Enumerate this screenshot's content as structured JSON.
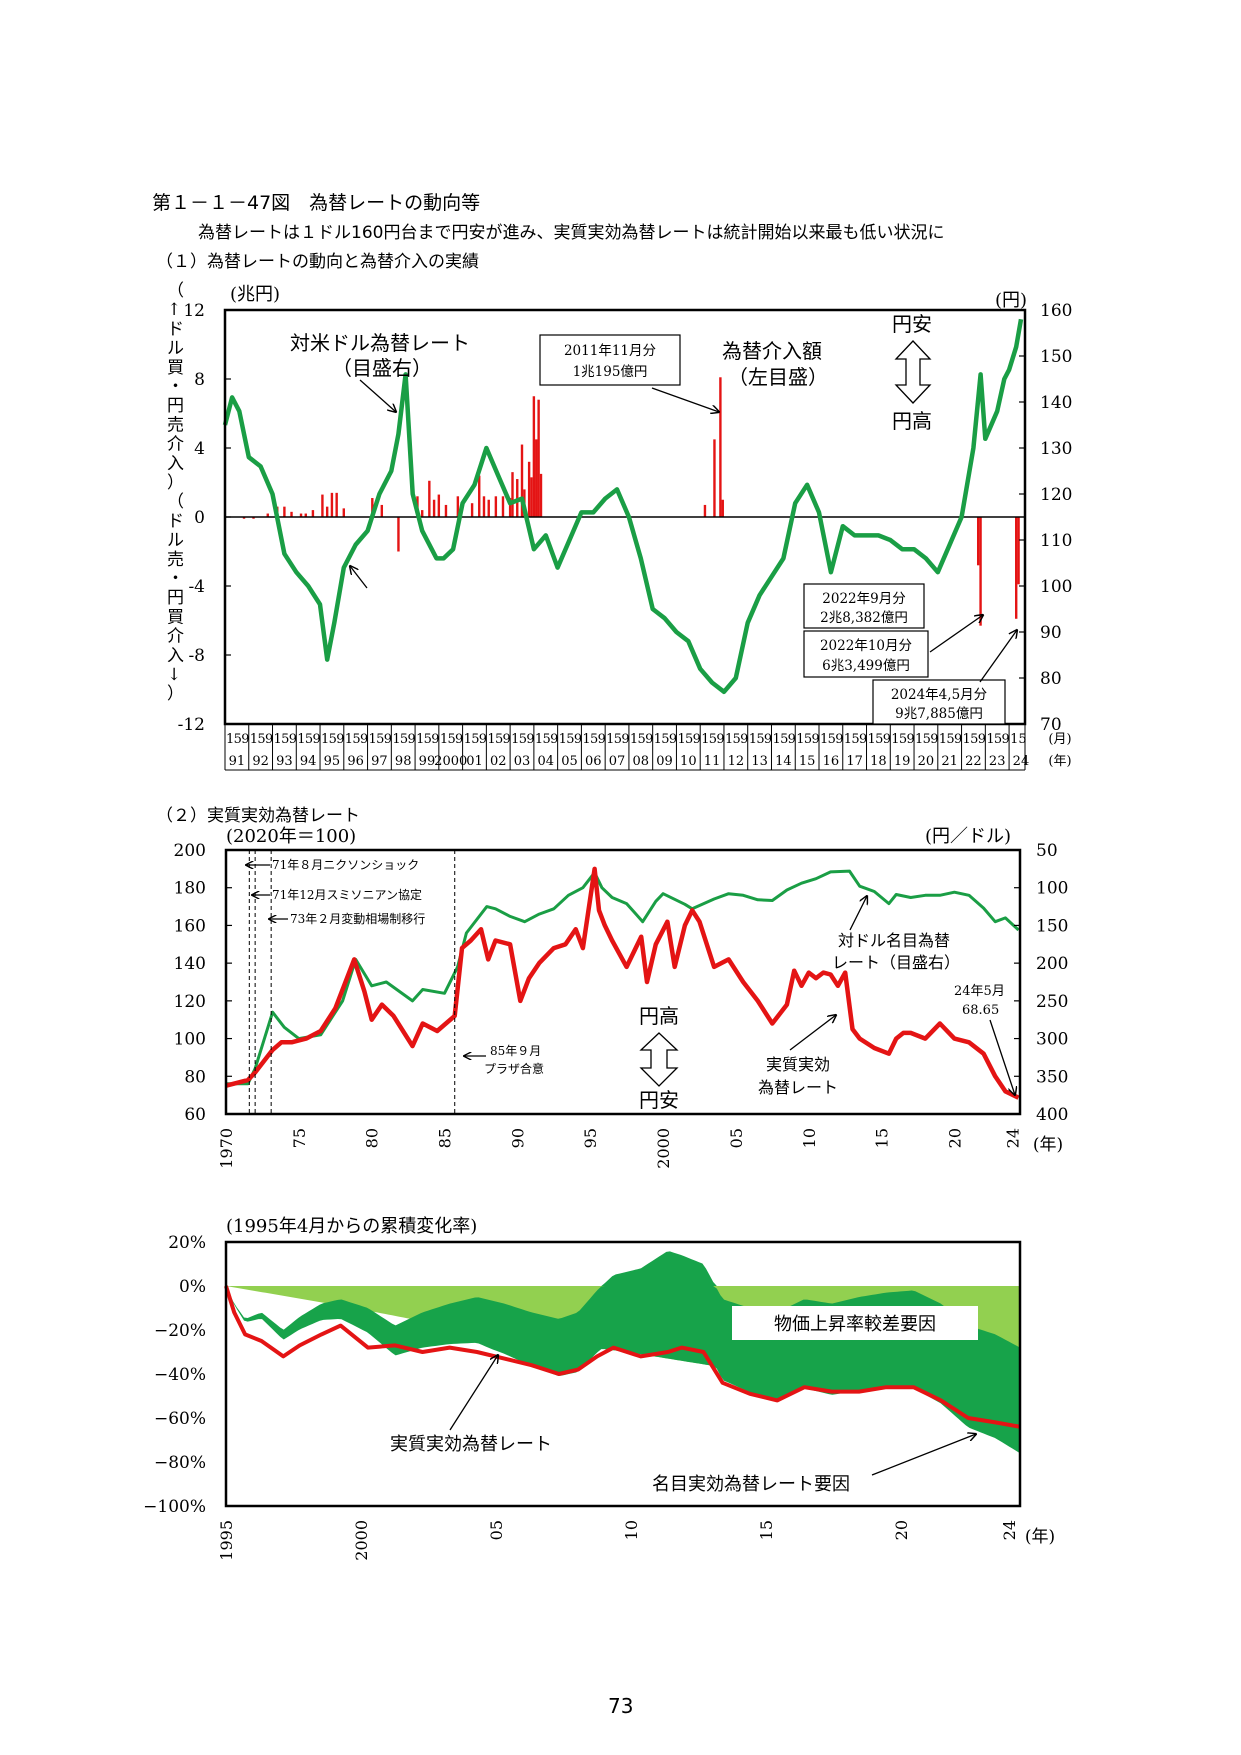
{
  "header": {
    "figure_title": "第１－１－47図　為替レートの動向等",
    "figure_subtitle": "為替レートは１ドル160円台まで円安が進み、実質実効為替レートは統計開始以来最も低い状況に",
    "section1_title": "（１）為替レートの動向と為替介入の実績",
    "section2_title": "（２）実質実効為替レート"
  },
  "page_number": "73",
  "colors": {
    "nominal": "#1a9e45",
    "real": "#e41414",
    "band_dark": "#17a34a",
    "band_light": "#92d050",
    "intervention": "#e41414"
  },
  "chart_data": [
    {
      "type": "line",
      "ylabel_left": "（↑ドル買・円売介入）（ドル売・円買介入↓）",
      "yunit_left": "(兆円)",
      "yunit_right": "(円)",
      "ylim_left": [
        -12,
        12
      ],
      "ylim_right": [
        70,
        160
      ],
      "yticks_left": [
        "12",
        "8",
        "4",
        "0",
        "-4",
        "-8",
        "-12"
      ],
      "yticks_right": [
        "160",
        "150",
        "140",
        "130",
        "120",
        "110",
        "100",
        "90",
        "80",
        "70"
      ],
      "x_month_labels": [
        "1",
        "5",
        "9"
      ],
      "x_month_label_last": "15",
      "x_year_labels": [
        "91",
        "92",
        "93",
        "94",
        "95",
        "96",
        "97",
        "98",
        "99",
        "2000",
        "01",
        "02",
        "03",
        "04",
        "05",
        "06",
        "07",
        "08",
        "09",
        "10",
        "11",
        "12",
        "13",
        "14",
        "15",
        "16",
        "17",
        "18",
        "19",
        "20",
        "21",
        "22",
        "23",
        "24"
      ],
      "x_unit_month": "(月)",
      "x_unit_year": "(年)",
      "yen_rate_series": {
        "name": "対米ドル為替レート",
        "x": [
          1991,
          1991.3,
          1991.6,
          1992,
          1992.5,
          1993,
          1993.5,
          1994,
          1994.5,
          1995,
          1995.3,
          1995.6,
          1996,
          1996.5,
          1997,
          1997.5,
          1998,
          1998.3,
          1998.6,
          1998.9,
          1999.3,
          1999.9,
          2000.2,
          2000.6,
          2001,
          2001.5,
          2002,
          2002.5,
          2003,
          2003.5,
          2004,
          2004.5,
          2005,
          2005.5,
          2006,
          2006.5,
          2007,
          2007.5,
          2008,
          2008.5,
          2009,
          2009.5,
          2010,
          2010.5,
          2011,
          2011.5,
          2012,
          2012.5,
          2013,
          2013.5,
          2014,
          2014.5,
          2015,
          2015.5,
          2016,
          2016.5,
          2017,
          2017.5,
          2018,
          2018.5,
          2019,
          2019.5,
          2020,
          2020.5,
          2021,
          2021.5,
          2022,
          2022.5,
          2022.8,
          2023,
          2023.5,
          2023.8,
          2024,
          2024.3,
          2024.5
        ],
        "values": [
          135,
          141,
          138,
          128,
          126,
          120,
          107,
          103,
          100,
          96,
          84,
          92,
          104,
          109,
          112,
          120,
          125,
          133,
          146,
          120,
          112,
          106,
          106,
          108,
          118,
          122,
          130,
          124,
          118,
          119,
          108,
          111,
          104,
          110,
          116,
          116,
          119,
          121,
          115,
          106,
          95,
          93,
          90,
          88,
          82,
          79,
          77,
          80,
          92,
          98,
          102,
          106,
          118,
          122,
          116,
          103,
          113,
          111,
          111,
          111,
          110,
          108,
          108,
          106,
          103,
          109,
          115,
          130,
          146,
          132,
          138,
          145,
          147,
          152,
          158
        ]
      },
      "intervention_series": {
        "name": "為替介入額",
        "unit": "兆円",
        "x": [
          1991.8,
          1992.2,
          1992.8,
          1993.2,
          1993.5,
          1993.8,
          1994.2,
          1994.4,
          1994.7,
          1995.1,
          1995.3,
          1995.5,
          1995.7,
          1996.0,
          1997.2,
          1997.6,
          1998.3,
          1999.1,
          1999.3,
          1999.6,
          1999.8,
          2000.0,
          2000.3,
          2000.8,
          2001.4,
          2001.7,
          2001.9,
          2002.1,
          2002.4,
          2002.7,
          2003.0,
          2003.1,
          2003.3,
          2003.5,
          2003.6,
          2003.8,
          2003.9,
          2004.0,
          2004.1,
          2004.2,
          2004.3,
          2011.2,
          2011.6,
          2011.85,
          2011.95,
          2022.7,
          2022.8,
          2024.3,
          2024.4
        ],
        "values": [
          -0.1,
          -0.1,
          0.2,
          0.6,
          0.6,
          0.3,
          0.2,
          0.2,
          0.4,
          1.3,
          0.6,
          1.4,
          1.4,
          0.5,
          1.1,
          0.7,
          -2.0,
          1.2,
          0.4,
          2.1,
          1.0,
          1.3,
          0.7,
          1.2,
          0.8,
          2.4,
          1.2,
          1.0,
          1.2,
          1.2,
          1.1,
          2.6,
          2.2,
          4.2,
          1.6,
          3.2,
          2.3,
          7.0,
          4.5,
          6.8,
          2.5,
          0.7,
          4.5,
          8.1,
          1.0,
          -2.8,
          -6.3,
          -5.9,
          -3.9
        ]
      },
      "annotations": {
        "rate_label": "対米ドル為替レート",
        "rate_scale": "（目盛右）",
        "interv_label": "為替介入額",
        "interv_scale": "（左目盛）",
        "box_2011_line1": "2011年11月分",
        "box_2011_line2": "1兆195億円",
        "box_2022_9_line1": "2022年9月分",
        "box_2022_9_line2": "2兆8,382億円",
        "box_2022_10_line1": "2022年10月分",
        "box_2022_10_line2": "6兆3,499億円",
        "box_2024_line1": "2024年4,5月分",
        "box_2024_line2": "9兆7,885億円",
        "yen_weak": "円安",
        "yen_strong": "円高"
      }
    },
    {
      "type": "line",
      "yunit_left": "(2020年＝100)",
      "yunit_right": "(円／ドル)",
      "ylim_left": [
        60,
        200
      ],
      "ylim_right_inverted": [
        400,
        50
      ],
      "yticks_left": [
        "200",
        "180",
        "160",
        "140",
        "120",
        "100",
        "80",
        "60"
      ],
      "yticks_right": [
        "50",
        "100",
        "150",
        "200",
        "250",
        "300",
        "350",
        "400"
      ],
      "x_ticks": [
        "1970",
        "75",
        "80",
        "85",
        "90",
        "95",
        "2000",
        "05",
        "10",
        "15",
        "20",
        "24"
      ],
      "x_unit": "(年)",
      "real_series": {
        "name": "実質実効為替レート",
        "x": [
          1970,
          1971.5,
          1972,
          1973.2,
          1973.8,
          1974.5,
          1975.5,
          1976.5,
          1977.5,
          1978.8,
          1979.5,
          1980,
          1980.7,
          1981.5,
          1982.8,
          1983.5,
          1984.5,
          1985.7,
          1986.2,
          1986.8,
          1987.5,
          1988,
          1988.5,
          1989.5,
          1990.2,
          1990.8,
          1991.5,
          1992.5,
          1993.3,
          1994,
          1994.5,
          1995.3,
          1995.6,
          1996,
          1996.5,
          1997.5,
          1998.5,
          1998.9,
          1999.5,
          2000.3,
          2000.8,
          2001.5,
          2002,
          2002.5,
          2003.5,
          2004.5,
          2005.5,
          2006.5,
          2007.5,
          2008.5,
          2009,
          2009.5,
          2010,
          2010.5,
          2011,
          2011.5,
          2012,
          2012.5,
          2013,
          2013.5,
          2014.5,
          2015.5,
          2016,
          2016.5,
          2017,
          2018,
          2019,
          2020,
          2021,
          2022,
          2022.8,
          2023.5,
          2024.4
        ],
        "values": [
          75,
          78,
          82,
          94,
          98,
          98,
          100,
          104,
          116,
          142,
          125,
          110,
          118,
          112,
          96,
          108,
          104,
          112,
          148,
          152,
          158,
          142,
          152,
          150,
          120,
          132,
          140,
          148,
          150,
          158,
          148,
          190,
          168,
          160,
          152,
          138,
          154,
          130,
          150,
          162,
          138,
          160,
          168,
          162,
          138,
          142,
          130,
          120,
          108,
          118,
          136,
          128,
          135,
          132,
          135,
          134,
          128,
          135,
          105,
          100,
          95,
          92,
          100,
          103,
          103,
          100,
          108,
          100,
          98,
          92,
          80,
          72,
          68.65
        ]
      },
      "nominal_series": {
        "name": "対ドル名目為替レート",
        "x": [
          1970,
          1971.5,
          1972,
          1973.2,
          1974,
          1975,
          1976.5,
          1978,
          1978.9,
          1980,
          1981,
          1982.8,
          1983.5,
          1985,
          1985.9,
          1986.5,
          1987.9,
          1988.5,
          1989.5,
          1990.5,
          1991.5,
          1992.5,
          1993.5,
          1994.5,
          1995.3,
          1995.8,
          1996.5,
          1997.5,
          1998.6,
          1999.5,
          2000,
          2001.5,
          2002,
          2003.5,
          2004.5,
          2005.5,
          2006.5,
          2007.5,
          2008.5,
          2009.5,
          2010.5,
          2011.5,
          2012.8,
          2013.5,
          2014.5,
          2015.5,
          2016,
          2017,
          2018,
          2019,
          2020,
          2021,
          2022,
          2022.8,
          2023.5,
          2024.4
        ],
        "values": [
          360,
          360,
          340,
          265,
          285,
          300,
          295,
          250,
          195,
          230,
          225,
          250,
          235,
          240,
          205,
          160,
          125,
          128,
          138,
          145,
          135,
          128,
          110,
          100,
          80,
          100,
          113,
          121,
          145,
          118,
          108,
          122,
          128,
          115,
          108,
          110,
          116,
          117,
          103,
          94,
          88,
          79,
          78,
          98,
          105,
          121,
          109,
          113,
          110,
          110,
          106,
          110,
          127,
          145,
          140,
          156
        ]
      },
      "annotations": {
        "nixon": "71年８月ニクソンショック",
        "smithsonian": "71年12月スミソニアン協定",
        "float": "73年２月変動相場制移行",
        "plaza_line1": "85年９月",
        "plaza_line2": "プラザ合意",
        "nominal_label_line1": "対ドル名目為替",
        "nominal_label_line2": "レート（目盛右）",
        "real_label_line1": "実質実効",
        "real_label_line2": "為替レート",
        "last_label_line1": "24年5月",
        "last_label_line2": "68.65",
        "yen_strong": "円高",
        "yen_weak": "円安"
      }
    },
    {
      "type": "area",
      "title": "(1995年4月からの累積変化率)",
      "ylim": [
        -100,
        20
      ],
      "yticks": [
        "20%",
        "0%",
        "−20%",
        "−40%",
        "−60%",
        "−80%",
        "−100%"
      ],
      "x_ticks": [
        "1995",
        "2000",
        "05",
        "10",
        "15",
        "20",
        "24"
      ],
      "x_unit": "(年)",
      "price_factor": {
        "name": "物価上昇率較差要因",
        "x": [
          1995.3,
          2000,
          2005,
          2010,
          2013,
          2015,
          2020,
          2024.4
        ],
        "values": [
          0,
          -10,
          -22,
          -30,
          -36,
          -39,
          -44,
          -48
        ]
      },
      "nominal_factor": {
        "name": "名目実効為替レート要因",
        "x": [
          1995.3,
          1995.6,
          1996,
          1996.6,
          1997.4,
          1998,
          1998.8,
          1999.5,
          2000.5,
          2001.5,
          2002.5,
          2003.5,
          2004.5,
          2005.5,
          2006.5,
          2007.5,
          2008.2,
          2008.9,
          2009.5,
          2010.5,
          2011.5,
          2012,
          2012.8,
          2013.5,
          2014.5,
          2015.5,
          2016.5,
          2017.5,
          2018.5,
          2019.5,
          2020.5,
          2021.5,
          2022.5,
          2023.5,
          2024.4
        ],
        "values": [
          0,
          -8,
          -15,
          -12,
          -20,
          -14,
          -8,
          -6,
          -10,
          -18,
          -12,
          -8,
          -5,
          -8,
          -12,
          -15,
          -12,
          -2,
          5,
          8,
          16,
          14,
          10,
          -6,
          -10,
          -12,
          -6,
          -8,
          -5,
          -3,
          -2,
          -8,
          -18,
          -22,
          -28
        ]
      },
      "real_series": {
        "name": "実質実効為替レート",
        "x": [
          1995.3,
          1995.6,
          1996,
          1996.6,
          1997.4,
          1998,
          1998.8,
          1999.5,
          2000.5,
          2001.5,
          2002.5,
          2003.5,
          2004.5,
          2005.5,
          2006.5,
          2007.5,
          2008.2,
          2008.9,
          2009.5,
          2010.5,
          2011.5,
          2012,
          2012.8,
          2013.5,
          2014.5,
          2015.5,
          2016.5,
          2017.5,
          2018.5,
          2019.5,
          2020.5,
          2021.5,
          2022.5,
          2023.5,
          2024.4
        ],
        "values": [
          0,
          -12,
          -22,
          -25,
          -32,
          -27,
          -22,
          -18,
          -28,
          -27,
          -30,
          -28,
          -30,
          -33,
          -36,
          -40,
          -38,
          -32,
          -28,
          -32,
          -30,
          -28,
          -30,
          -44,
          -49,
          -52,
          -46,
          -48,
          -48,
          -46,
          -46,
          -52,
          -60,
          -62,
          -64
        ]
      },
      "annotations": {
        "price_label": "物価上昇率較差要因",
        "real_label": "実質実効為替レート",
        "nominal_label": "名目実効為替レート要因"
      }
    }
  ]
}
